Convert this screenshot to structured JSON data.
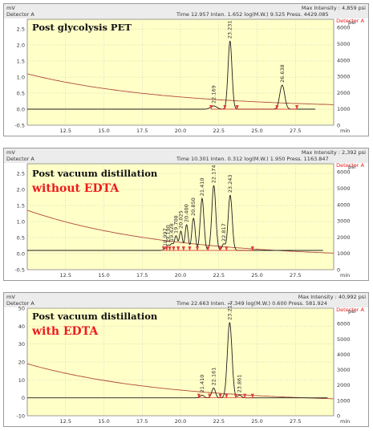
{
  "colors": {
    "plot_bg": "#ffffc8",
    "trace": "#1f1f1f",
    "baseline": "#cc2222",
    "marker": "#e04040",
    "label_red": "#ee1c1c",
    "grid": "#b8b8b8",
    "frame_bg": "#ececec"
  },
  "chart_data": [
    {
      "type": "line",
      "title": "Post glycolysis PET",
      "header": {
        "detector": "Detector A",
        "time_label": "Time",
        "time_value": "12.957",
        "inten_label": "Inten.",
        "inten_value": "1.652",
        "mw_label": "log(M.W.)",
        "mw_value": "9.525",
        "press_label": "Press.",
        "press_value": "4429.085",
        "max_intensity_label": "Max Intensity :",
        "max_intensity_value": "4,859",
        "unit_right": "psi",
        "detector_right": "Detector A"
      },
      "ylabel": "mV",
      "y2label": "psi",
      "xlabel": "min",
      "xlim": [
        10,
        30
      ],
      "ylim": [
        -0.5,
        2.8
      ],
      "y2lim": [
        0,
        6500
      ],
      "xticks": [
        "12.5",
        "15.0",
        "17.5",
        "20.0",
        "22.5",
        "25.0",
        "27.5"
      ],
      "yticks": [
        "-0.5",
        "0.0",
        "0.5",
        "1.0",
        "1.5",
        "2.0",
        "2.5"
      ],
      "y2ticks": [
        "0",
        "1000",
        "2000",
        "3000",
        "4000",
        "5000",
        "6000"
      ],
      "pressure_start": 1.1,
      "pressure_end": 0.02,
      "baseline_offset": 0.0,
      "trace_end_time": 28.8,
      "peaks": [
        {
          "rt": 22.169,
          "label": "22.169",
          "height": 0.1,
          "width": 0.2
        },
        {
          "rt": 23.231,
          "label": "23.231",
          "height": 2.12,
          "width": 0.13
        },
        {
          "rt": 26.638,
          "label": "26.638",
          "height": 0.75,
          "width": 0.16
        }
      ],
      "markers": [
        22.0,
        22.9,
        23.7,
        26.3,
        27.6
      ]
    },
    {
      "type": "line",
      "title": "Post vacuum distillation",
      "subtitle": "without EDTA",
      "header": {
        "detector": "Detector A",
        "time_label": "Time",
        "time_value": "10.301",
        "inten_label": "Inten.",
        "inten_value": "0.312",
        "mw_label": "log(M.W.)",
        "mw_value": "1.950",
        "press_label": "Press.",
        "press_value": "1163.847",
        "max_intensity_label": "Max Intensity :",
        "max_intensity_value": "2,392",
        "unit_right": "psi",
        "detector_right": "Detector A"
      },
      "ylabel": "mV",
      "y2label": "psi",
      "xlabel": "min",
      "xlim": [
        10,
        30
      ],
      "ylim": [
        -0.5,
        2.8
      ],
      "y2lim": [
        0,
        6500
      ],
      "xticks": [
        "12.5",
        "15.0",
        "17.5",
        "20.0",
        "22.5",
        "25.0",
        "27.5"
      ],
      "yticks": [
        "-0.5",
        "0.0",
        "0.5",
        "1.0",
        "1.5",
        "2.0",
        "2.5"
      ],
      "y2ticks": [
        "0",
        "1000",
        "2000",
        "3000",
        "4000",
        "5000",
        "6000"
      ],
      "pressure_start": 1.35,
      "pressure_end": -0.15,
      "baseline_offset": 0.1,
      "trace_end_time": 29.3,
      "peaks": [
        {
          "rt": 18.997,
          "label": "18.997",
          "height": 0.05,
          "width": 0.1
        },
        {
          "rt": 19.428,
          "label": "19.428",
          "height": 0.2,
          "width": 0.1
        },
        {
          "rt": 19.19,
          "label": "19.190",
          "height": 0.15,
          "width": 0.09
        },
        {
          "rt": 19.708,
          "label": "19.708",
          "height": 0.45,
          "width": 0.1
        },
        {
          "rt": 20.025,
          "label": "20.025",
          "height": 0.6,
          "width": 0.1
        },
        {
          "rt": 20.4,
          "label": "20.400",
          "height": 0.8,
          "width": 0.1
        },
        {
          "rt": 20.85,
          "label": "20.850",
          "height": 1.0,
          "width": 0.11
        },
        {
          "rt": 21.41,
          "label": "21.410",
          "height": 1.62,
          "width": 0.12
        },
        {
          "rt": 22.174,
          "label": "22.174",
          "height": 2.02,
          "width": 0.13
        },
        {
          "rt": 22.817,
          "label": "22.817",
          "height": 0.2,
          "width": 0.1
        },
        {
          "rt": 23.243,
          "label": "23.243",
          "height": 1.72,
          "width": 0.13
        }
      ],
      "markers": [
        18.9,
        19.1,
        19.3,
        19.55,
        19.85,
        20.2,
        20.6,
        21.1,
        21.8,
        22.6,
        23.0,
        24.7
      ]
    },
    {
      "type": "line",
      "title": "Post vacuum distillation",
      "subtitle": "with EDTA",
      "header": {
        "detector": "Detector A",
        "time_label": "Time",
        "time_value": "22.663",
        "inten_label": "Inten.",
        "inten_value": "-7.349",
        "mw_label": "log(M.W.)",
        "mw_value": "0.600",
        "press_label": "Press.",
        "press_value": "581.924",
        "max_intensity_label": "Max Intensity :",
        "max_intensity_value": "40,992",
        "unit_right": "psi",
        "detector_right": "Detector A"
      },
      "ylabel": "mV",
      "y2label": "psi",
      "xlabel": "min",
      "xlim": [
        10,
        30
      ],
      "ylim": [
        -10,
        50
      ],
      "y2lim": [
        0,
        7000
      ],
      "xticks": [
        "12.5",
        "15.0",
        "17.5",
        "20.0",
        "22.5",
        "25.0",
        "27.5"
      ],
      "yticks": [
        "-10",
        "0",
        "10",
        "20",
        "30",
        "40",
        "50"
      ],
      "y2ticks": [
        "0",
        "1000",
        "2000",
        "3000",
        "4000",
        "5000",
        "6000"
      ],
      "pressure_start": 19,
      "pressure_end": -3,
      "baseline_offset": 0,
      "trace_end_time": 29.6,
      "peaks": [
        {
          "rt": 21.41,
          "label": "21.410",
          "height": 1.5,
          "width": 0.12
        },
        {
          "rt": 22.161,
          "label": "22.161",
          "height": 5.5,
          "width": 0.12
        },
        {
          "rt": 23.211,
          "label": "23.211",
          "height": 42,
          "width": 0.15
        },
        {
          "rt": 23.861,
          "label": "23.861",
          "height": 1.5,
          "width": 0.12
        }
      ],
      "markers": [
        21.2,
        21.9,
        22.6,
        23.0,
        23.6,
        24.2,
        24.7
      ]
    }
  ]
}
